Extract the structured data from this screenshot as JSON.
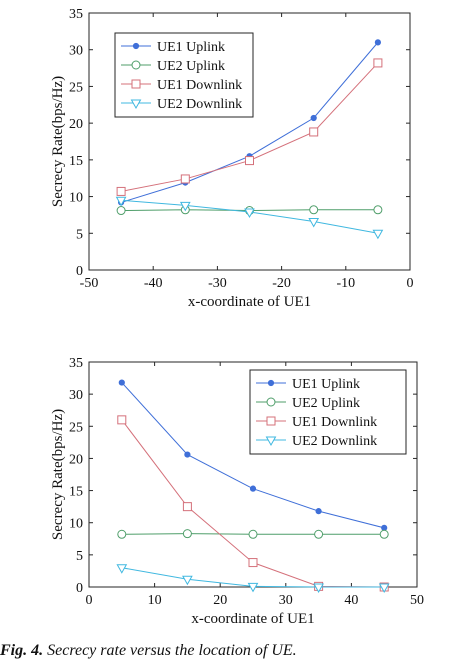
{
  "chart_data": [
    {
      "type": "line",
      "xlabel": "x-coordinate of UE1",
      "ylabel": "Secrecy Rate(bps/Hz)",
      "xlim": [
        -50,
        0
      ],
      "ylim": [
        0,
        35
      ],
      "x_ticks": [
        -50,
        -40,
        -30,
        -20,
        -10,
        0
      ],
      "y_ticks": [
        0,
        5,
        10,
        15,
        20,
        25,
        30,
        35
      ],
      "x": [
        -45,
        -35,
        -25,
        -15,
        -5
      ],
      "legend_position": "top-left",
      "grid": false,
      "series": [
        {
          "name": "UE1 Uplink",
          "values": [
            9.2,
            11.9,
            15.5,
            20.7,
            31.0
          ],
          "color": "#3f6fd8",
          "marker": "dot"
        },
        {
          "name": "UE2 Uplink",
          "values": [
            8.1,
            8.2,
            8.1,
            8.2,
            8.2
          ],
          "color": "#4f9e6a",
          "marker": "circle"
        },
        {
          "name": "UE1 Downlink",
          "values": [
            10.7,
            12.4,
            14.9,
            18.8,
            28.2
          ],
          "color": "#d4707a",
          "marker": "square"
        },
        {
          "name": "UE2 Downlink",
          "values": [
            9.5,
            8.8,
            7.9,
            6.6,
            5.0
          ],
          "color": "#40b8e0",
          "marker": "triangle"
        }
      ]
    },
    {
      "type": "line",
      "xlabel": "x-coordinate of UE1",
      "ylabel": "Secrecy Rate(bps/Hz)",
      "xlim": [
        0,
        50
      ],
      "ylim": [
        0,
        35
      ],
      "x_ticks": [
        0,
        10,
        20,
        30,
        40,
        50
      ],
      "y_ticks": [
        0,
        5,
        10,
        15,
        20,
        25,
        30,
        35
      ],
      "x": [
        5,
        15,
        25,
        35,
        45
      ],
      "legend_position": "top-right",
      "grid": false,
      "series": [
        {
          "name": "UE1 Uplink",
          "values": [
            31.8,
            20.6,
            15.3,
            11.8,
            9.2
          ],
          "color": "#3f6fd8",
          "marker": "dot"
        },
        {
          "name": "UE2 Uplink",
          "values": [
            8.2,
            8.3,
            8.2,
            8.2,
            8.2
          ],
          "color": "#4f9e6a",
          "marker": "circle"
        },
        {
          "name": "UE1 Downlink",
          "values": [
            26.0,
            12.5,
            3.8,
            0.1,
            0.0
          ],
          "color": "#d4707a",
          "marker": "square"
        },
        {
          "name": "UE2 Downlink",
          "values": [
            3.0,
            1.2,
            0.1,
            0.0,
            0.0
          ],
          "color": "#40b8e0",
          "marker": "triangle"
        }
      ]
    }
  ],
  "caption": {
    "label": "Fig. 4.",
    "text": "Secrecy rate versus the location of UE."
  }
}
